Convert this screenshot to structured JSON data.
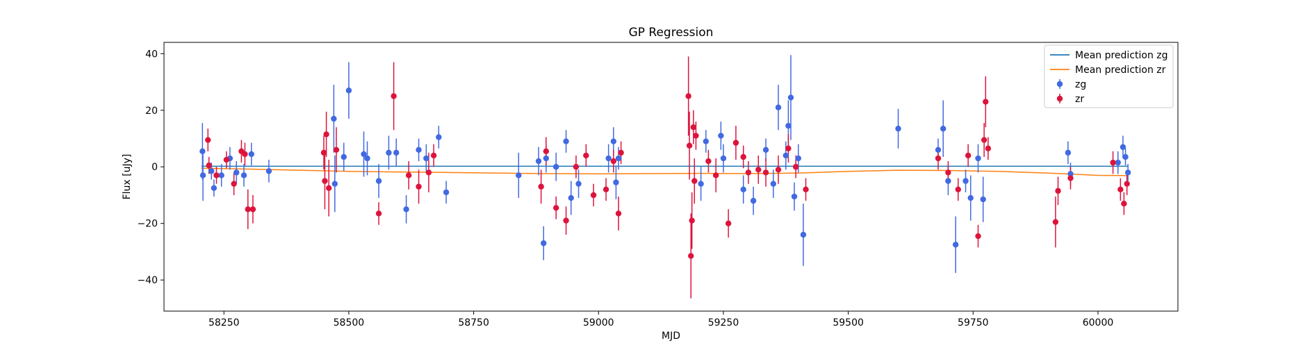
{
  "chart_data": {
    "type": "scatter",
    "title": "GP Regression",
    "xlabel": "MJD",
    "ylabel": "Flux [uJy]",
    "xlim": [
      58130,
      60160
    ],
    "ylim": [
      -51,
      44
    ],
    "xticks": [
      58250,
      58500,
      58750,
      59000,
      59250,
      59500,
      59750,
      60000
    ],
    "yticks": [
      -40,
      -20,
      0,
      20,
      40
    ],
    "grid": false,
    "legend_position": "top-right",
    "legend": {
      "entries": [
        "Mean prediction zg",
        "Mean prediction zr",
        "zg",
        "zr"
      ]
    },
    "colors": {
      "zg_points": "#4169e1",
      "zr_points": "#dc143c",
      "zg_line": "#1f77b4",
      "zr_line": "#ff7f0e"
    },
    "series": [
      {
        "name": "Mean prediction zg",
        "kind": "line",
        "x": [
          58205,
          58400,
          58600,
          58800,
          59000,
          59200,
          59400,
          59600,
          59800,
          60000,
          60060
        ],
        "y": [
          0.2,
          0.2,
          0.2,
          0.2,
          0.2,
          0.2,
          0.2,
          0.2,
          0.2,
          0.2,
          0.2
        ]
      },
      {
        "name": "Mean prediction zr",
        "kind": "line",
        "x": [
          58205,
          58300,
          58400,
          58500,
          58600,
          58700,
          58800,
          58900,
          59000,
          59100,
          59200,
          59300,
          59400,
          59500,
          59600,
          59700,
          59800,
          59900,
          60000,
          60060
        ],
        "y": [
          -0.5,
          -0.8,
          -1.2,
          -1.6,
          -1.8,
          -2.0,
          -2.2,
          -2.4,
          -2.5,
          -2.4,
          -2.3,
          -2.4,
          -2.2,
          -1.6,
          -1.2,
          -1.3,
          -1.6,
          -2.2,
          -3.0,
          -3.1
        ]
      },
      {
        "name": "zg",
        "kind": "errorbar",
        "points": [
          [
            58207,
            5.5,
            10
          ],
          [
            58208,
            -3,
            9
          ],
          [
            58225,
            -1.5,
            3
          ],
          [
            58230,
            -7.5,
            3
          ],
          [
            58245,
            -3,
            4
          ],
          [
            58262,
            3,
            4
          ],
          [
            58275,
            -2,
            4
          ],
          [
            58290,
            -3,
            4
          ],
          [
            58305,
            4.5,
            4
          ],
          [
            58340,
            -1.5,
            4
          ],
          [
            58470,
            17,
            12
          ],
          [
            58472,
            -6,
            10
          ],
          [
            58490,
            3.5,
            5
          ],
          [
            58500,
            27,
            10
          ],
          [
            58530,
            4.5,
            8
          ],
          [
            58537,
            3,
            6
          ],
          [
            58560,
            -5,
            6
          ],
          [
            58580,
            5,
            6
          ],
          [
            58595,
            5,
            5
          ],
          [
            58615,
            -15,
            5
          ],
          [
            58640,
            6,
            4
          ],
          [
            58655,
            3,
            5
          ],
          [
            58680,
            10.5,
            4
          ],
          [
            58695,
            -9,
            4
          ],
          [
            58840,
            -3,
            8
          ],
          [
            58880,
            2,
            5
          ],
          [
            58890,
            -27,
            6
          ],
          [
            58895,
            3,
            5
          ],
          [
            58915,
            0,
            5
          ],
          [
            58935,
            9,
            4
          ],
          [
            58945,
            -11,
            6
          ],
          [
            58960,
            -6,
            5
          ],
          [
            59020,
            3,
            5
          ],
          [
            59030,
            9,
            5
          ],
          [
            59035,
            -5.5,
            6
          ],
          [
            59040,
            3,
            4
          ],
          [
            59205,
            -6,
            6
          ],
          [
            59215,
            9,
            4
          ],
          [
            59245,
            11,
            5
          ],
          [
            59250,
            3,
            5
          ],
          [
            59290,
            -8,
            5
          ],
          [
            59310,
            -12,
            5
          ],
          [
            59335,
            6,
            4
          ],
          [
            59350,
            -6,
            5
          ],
          [
            59360,
            21,
            8
          ],
          [
            59375,
            4,
            5
          ],
          [
            59380,
            14.5,
            9
          ],
          [
            59385,
            24.5,
            15
          ],
          [
            59392,
            -10.5,
            5
          ],
          [
            59400,
            3,
            5
          ],
          [
            59410,
            -24,
            11
          ],
          [
            59600,
            13.5,
            7
          ],
          [
            59680,
            6,
            4
          ],
          [
            59690,
            13.5,
            10
          ],
          [
            59700,
            -5,
            5
          ],
          [
            59715,
            -27.5,
            10
          ],
          [
            59735,
            -5,
            4
          ],
          [
            59745,
            -11,
            8
          ],
          [
            59760,
            3,
            5
          ],
          [
            59770,
            -11.5,
            8
          ],
          [
            59940,
            5,
            4
          ],
          [
            59945,
            -2.5,
            4
          ],
          [
            60040,
            1.5,
            4
          ],
          [
            60050,
            7,
            4
          ],
          [
            60055,
            3.5,
            3
          ],
          [
            60060,
            -2,
            3
          ]
        ]
      },
      {
        "name": "zr",
        "kind": "errorbar",
        "points": [
          [
            58218,
            9.5,
            4
          ],
          [
            58220,
            0.5,
            3
          ],
          [
            58235,
            -3,
            3
          ],
          [
            58255,
            2.5,
            3
          ],
          [
            58270,
            -6,
            4
          ],
          [
            58285,
            5.5,
            4
          ],
          [
            58292,
            4.5,
            4
          ],
          [
            58298,
            -15,
            7
          ],
          [
            58308,
            -15,
            5
          ],
          [
            58450,
            5,
            6
          ],
          [
            58452,
            -5,
            10
          ],
          [
            58455,
            11.5,
            8
          ],
          [
            58460,
            -7.5,
            10
          ],
          [
            58475,
            6,
            8
          ],
          [
            58560,
            -16.5,
            4
          ],
          [
            58590,
            25,
            12
          ],
          [
            58620,
            -3,
            5
          ],
          [
            58640,
            -7,
            6
          ],
          [
            58660,
            -2,
            7
          ],
          [
            58670,
            4,
            4
          ],
          [
            58885,
            -7,
            6
          ],
          [
            58895,
            5.5,
            5
          ],
          [
            58915,
            -14.5,
            4
          ],
          [
            58935,
            -19,
            5
          ],
          [
            58955,
            0,
            4
          ],
          [
            58975,
            4,
            4
          ],
          [
            58990,
            -10,
            4
          ],
          [
            59015,
            -8,
            4
          ],
          [
            59030,
            2,
            4
          ],
          [
            59040,
            -16.5,
            6
          ],
          [
            59045,
            5,
            4
          ],
          [
            59180,
            25,
            14
          ],
          [
            59182,
            7.5,
            12
          ],
          [
            59185,
            -31.5,
            15
          ],
          [
            59187,
            -19,
            10
          ],
          [
            59190,
            14,
            6
          ],
          [
            59192,
            -5,
            8
          ],
          [
            59195,
            11,
            5
          ],
          [
            59220,
            2,
            4
          ],
          [
            59235,
            -3,
            6
          ],
          [
            59260,
            -20,
            5
          ],
          [
            59275,
            8.5,
            6
          ],
          [
            59290,
            3.5,
            4
          ],
          [
            59300,
            -2,
            4
          ],
          [
            59320,
            -1,
            5
          ],
          [
            59335,
            -2,
            5
          ],
          [
            59360,
            -1,
            5
          ],
          [
            59380,
            6.5,
            5
          ],
          [
            59395,
            0,
            4
          ],
          [
            59415,
            -8,
            4
          ],
          [
            59680,
            3,
            4
          ],
          [
            59700,
            -2,
            4
          ],
          [
            59720,
            -8,
            4
          ],
          [
            59740,
            4,
            4
          ],
          [
            59760,
            -24.5,
            4
          ],
          [
            59772,
            9.5,
            6
          ],
          [
            59775,
            23,
            9
          ],
          [
            59780,
            6.5,
            4
          ],
          [
            59915,
            -19.5,
            9
          ],
          [
            59920,
            -8.5,
            5
          ],
          [
            59945,
            -4,
            4
          ],
          [
            60030,
            1.5,
            4
          ],
          [
            60045,
            -8,
            4
          ],
          [
            60052,
            -13,
            4
          ],
          [
            60058,
            -6,
            4
          ]
        ]
      }
    ]
  }
}
